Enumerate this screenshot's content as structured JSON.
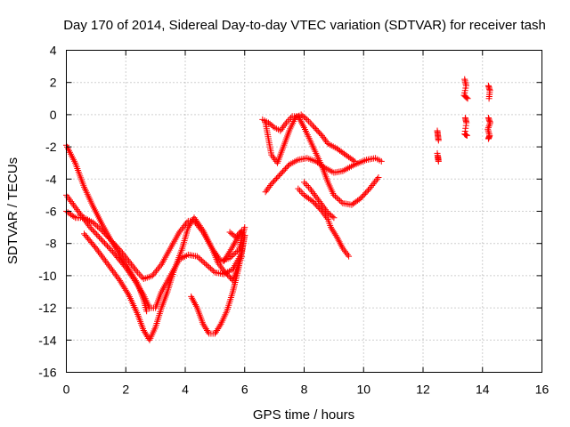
{
  "chart_data": {
    "type": "scatter",
    "title": "Day 170 of 2014, Sidereal Day-to-day VTEC variation (SDTVAR) for receiver tash",
    "xlabel": "GPS time / hours",
    "ylabel": "SDTVAR / TECUs",
    "xlim": [
      0,
      16
    ],
    "ylim": [
      -16,
      4
    ],
    "x_ticks": [
      0,
      2,
      4,
      6,
      8,
      10,
      12,
      14,
      16
    ],
    "y_ticks": [
      -16,
      -14,
      -12,
      -10,
      -8,
      -6,
      -4,
      -2,
      0,
      2,
      4
    ],
    "grid": true,
    "marker": "+",
    "color": "#ff0000",
    "series": [
      {
        "name": "track-1",
        "points": [
          [
            0.0,
            -1.9
          ],
          [
            0.3,
            -3.0
          ],
          [
            0.6,
            -4.5
          ],
          [
            0.9,
            -5.7
          ],
          [
            1.2,
            -6.8
          ],
          [
            1.5,
            -7.8
          ],
          [
            1.8,
            -8.7
          ],
          [
            2.1,
            -9.6
          ],
          [
            2.4,
            -10.5
          ],
          [
            2.6,
            -11.5
          ],
          [
            2.7,
            -12.2
          ]
        ]
      },
      {
        "name": "track-2",
        "points": [
          [
            0.0,
            -5.0
          ],
          [
            0.4,
            -6.0
          ],
          [
            0.8,
            -7.0
          ],
          [
            1.2,
            -7.8
          ],
          [
            1.6,
            -8.6
          ],
          [
            2.0,
            -9.5
          ],
          [
            2.3,
            -10.3
          ],
          [
            2.6,
            -11.2
          ],
          [
            2.8,
            -12.0
          ],
          [
            3.0,
            -12.0
          ],
          [
            3.2,
            -11.0
          ],
          [
            3.5,
            -10.0
          ],
          [
            3.8,
            -9.0
          ],
          [
            4.1,
            -8.7
          ],
          [
            4.4,
            -8.8
          ],
          [
            4.7,
            -9.3
          ],
          [
            5.0,
            -9.8
          ],
          [
            5.3,
            -9.9
          ],
          [
            5.6,
            -9.6
          ],
          [
            5.9,
            -8.6
          ],
          [
            6.0,
            -7.5
          ]
        ]
      },
      {
        "name": "track-3",
        "points": [
          [
            0.0,
            -6.0
          ],
          [
            0.3,
            -6.4
          ],
          [
            0.6,
            -6.4
          ],
          [
            0.9,
            -6.7
          ],
          [
            1.2,
            -7.2
          ],
          [
            1.5,
            -7.8
          ],
          [
            1.8,
            -8.4
          ],
          [
            2.1,
            -9.1
          ],
          [
            2.4,
            -9.8
          ],
          [
            2.6,
            -10.2
          ],
          [
            2.9,
            -10.0
          ],
          [
            3.2,
            -9.3
          ],
          [
            3.5,
            -8.3
          ],
          [
            3.8,
            -7.3
          ],
          [
            4.1,
            -6.6
          ],
          [
            4.3,
            -6.6
          ],
          [
            4.6,
            -7.3
          ],
          [
            4.9,
            -8.3
          ],
          [
            5.2,
            -9.1
          ],
          [
            5.5,
            -8.9
          ],
          [
            5.8,
            -8.4
          ],
          [
            6.0,
            -7.0
          ]
        ]
      },
      {
        "name": "track-4",
        "points": [
          [
            0.6,
            -7.4
          ],
          [
            1.0,
            -8.3
          ],
          [
            1.4,
            -9.3
          ],
          [
            1.8,
            -10.3
          ],
          [
            2.1,
            -11.2
          ],
          [
            2.4,
            -12.4
          ],
          [
            2.6,
            -13.4
          ],
          [
            2.8,
            -14.0
          ],
          [
            3.0,
            -13.2
          ],
          [
            3.2,
            -12.0
          ],
          [
            3.4,
            -11.0
          ],
          [
            3.6,
            -9.8
          ],
          [
            3.9,
            -8.3
          ],
          [
            4.1,
            -7.0
          ],
          [
            4.3,
            -6.4
          ],
          [
            4.6,
            -7.2
          ],
          [
            4.9,
            -8.3
          ],
          [
            5.1,
            -9.2
          ],
          [
            5.3,
            -9.7
          ],
          [
            5.6,
            -10.3
          ],
          [
            5.9,
            -8.8
          ]
        ]
      },
      {
        "name": "track-5",
        "points": [
          [
            4.2,
            -11.3
          ],
          [
            4.4,
            -12.0
          ],
          [
            4.6,
            -13.0
          ],
          [
            4.8,
            -13.6
          ],
          [
            5.0,
            -13.6
          ],
          [
            5.2,
            -13.0
          ],
          [
            5.4,
            -12.2
          ],
          [
            5.6,
            -11.0
          ],
          [
            5.8,
            -9.5
          ],
          [
            6.0,
            -7.5
          ]
        ]
      },
      {
        "name": "track-6",
        "points": [
          [
            5.5,
            -7.3
          ],
          [
            5.7,
            -7.6
          ],
          [
            5.9,
            -7.2
          ],
          [
            5.5,
            -8.5
          ],
          [
            5.3,
            -9.1
          ]
        ]
      },
      {
        "name": "track-7",
        "points": [
          [
            6.7,
            -4.8
          ],
          [
            6.9,
            -4.3
          ],
          [
            7.2,
            -3.7
          ],
          [
            7.5,
            -3.1
          ],
          [
            7.8,
            -2.8
          ],
          [
            8.1,
            -2.7
          ],
          [
            8.4,
            -2.9
          ],
          [
            8.7,
            -3.3
          ],
          [
            9.0,
            -3.6
          ],
          [
            9.3,
            -3.5
          ],
          [
            9.7,
            -3.1
          ],
          [
            10.1,
            -2.8
          ],
          [
            10.4,
            -2.7
          ],
          [
            10.6,
            -2.9
          ]
        ]
      },
      {
        "name": "track-8",
        "points": [
          [
            6.7,
            -0.5
          ],
          [
            6.8,
            -1.5
          ],
          [
            6.9,
            -2.5
          ],
          [
            7.1,
            -3.0
          ],
          [
            7.3,
            -2.0
          ],
          [
            7.5,
            -1.0
          ],
          [
            7.7,
            -0.2
          ],
          [
            7.9,
            0.0
          ],
          [
            8.1,
            -0.3
          ],
          [
            8.3,
            -0.7
          ],
          [
            8.6,
            -1.3
          ],
          [
            8.8,
            -1.8
          ],
          [
            9.1,
            -2.1
          ],
          [
            9.4,
            -2.5
          ],
          [
            9.7,
            -2.9
          ]
        ]
      },
      {
        "name": "track-9",
        "points": [
          [
            6.6,
            -0.3
          ],
          [
            6.8,
            -0.5
          ],
          [
            7.0,
            -0.8
          ],
          [
            7.2,
            -1.0
          ],
          [
            7.4,
            -0.5
          ],
          [
            7.6,
            -0.1
          ],
          [
            7.8,
            -0.1
          ],
          [
            8.0,
            -0.8
          ],
          [
            8.2,
            -1.6
          ],
          [
            8.4,
            -2.4
          ],
          [
            8.6,
            -3.2
          ],
          [
            8.8,
            -4.2
          ],
          [
            9.0,
            -5.0
          ],
          [
            9.3,
            -5.5
          ],
          [
            9.6,
            -5.6
          ],
          [
            9.9,
            -5.2
          ],
          [
            10.2,
            -4.6
          ],
          [
            10.5,
            -3.9
          ]
        ]
      },
      {
        "name": "track-10",
        "points": [
          [
            7.8,
            -4.6
          ],
          [
            8.0,
            -5.0
          ],
          [
            8.3,
            -5.4
          ],
          [
            8.6,
            -6.0
          ],
          [
            8.8,
            -6.5
          ],
          [
            8.9,
            -7.0
          ],
          [
            9.1,
            -7.6
          ],
          [
            9.3,
            -8.3
          ],
          [
            9.5,
            -8.8
          ]
        ]
      },
      {
        "name": "track-11",
        "points": [
          [
            8.0,
            -4.2
          ],
          [
            8.2,
            -4.6
          ],
          [
            8.4,
            -5.1
          ],
          [
            8.6,
            -5.6
          ],
          [
            8.8,
            -6.1
          ],
          [
            9.0,
            -6.4
          ]
        ]
      },
      {
        "name": "cluster-12.5",
        "points": [
          [
            12.48,
            -1.0
          ],
          [
            12.5,
            -1.3
          ],
          [
            12.52,
            -1.6
          ],
          [
            12.5,
            -2.6
          ],
          [
            12.52,
            -2.9
          ],
          [
            12.48,
            -2.4
          ]
        ]
      },
      {
        "name": "cluster-13.4",
        "points": [
          [
            13.4,
            2.2
          ],
          [
            13.45,
            1.8
          ],
          [
            13.38,
            1.2
          ],
          [
            13.5,
            1.0
          ],
          [
            13.42,
            -0.2
          ],
          [
            13.46,
            -0.5
          ],
          [
            13.4,
            -1.2
          ],
          [
            13.48,
            -1.3
          ]
        ]
      },
      {
        "name": "cluster-14.2",
        "points": [
          [
            14.2,
            1.8
          ],
          [
            14.25,
            1.5
          ],
          [
            14.22,
            1.0
          ],
          [
            14.2,
            -0.2
          ],
          [
            14.26,
            -0.5
          ],
          [
            14.18,
            -0.9
          ],
          [
            14.24,
            -1.3
          ],
          [
            14.2,
            -1.5
          ]
        ]
      }
    ]
  }
}
